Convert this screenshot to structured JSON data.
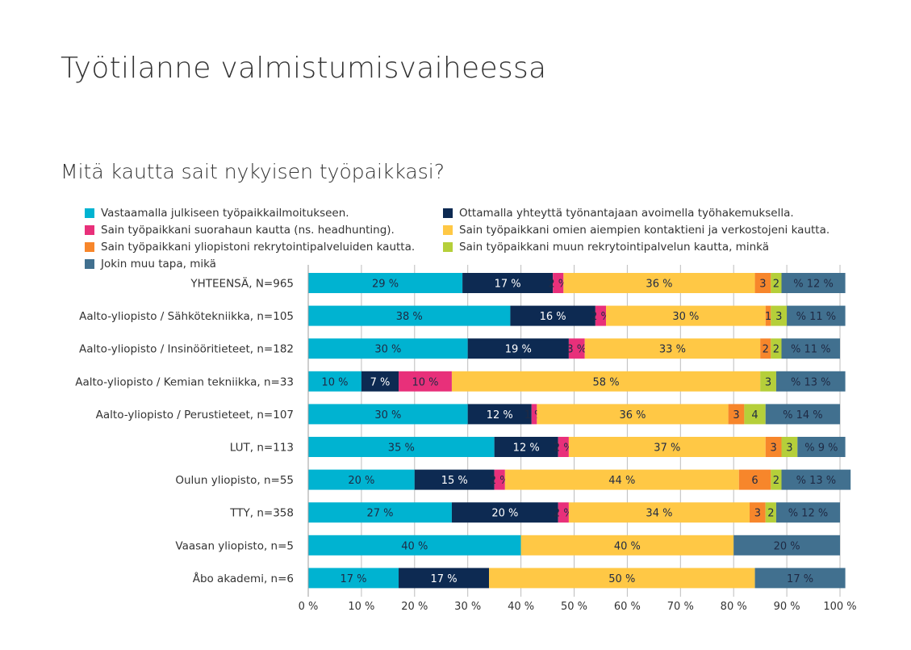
{
  "title": "Työtilanne valmistumisvaiheessa",
  "subtitle": "Mitä kautta sait nykyisen työpaikkasi?",
  "chart_data": {
    "type": "bar",
    "orientation": "horizontal",
    "stacked": true,
    "title": "Mitä kautta sait nykyisen työpaikkasi?",
    "xlim": [
      0,
      100
    ],
    "x_ticks": [
      "0 %",
      "10 %",
      "20 %",
      "30 %",
      "40 %",
      "50 %",
      "60 %",
      "70 %",
      "80 %",
      "90 %",
      "100 %"
    ],
    "grid": true,
    "legend_position": "top",
    "categories": [
      "YHTEENSÄ, N=965",
      "Aalto-yliopisto / Sähkötekniikka, n=105",
      "Aalto-yliopisto / Insinööritieteet, n=182",
      "Aalto-yliopisto / Kemian tekniikka, n=33",
      "Aalto-yliopisto / Perustieteet, n=107",
      "LUT, n=113",
      "Oulun yliopisto, n=55",
      "TTY, n=358",
      "Vaasan yliopisto, n=5",
      "Åbo akademi, n=6"
    ],
    "series": [
      {
        "name": "Vastaamalla julkiseen työpaikkailmoitukseen.",
        "color": "#00b3d1",
        "label_color": "#1f2a44",
        "values": [
          29,
          38,
          30,
          10,
          30,
          35,
          20,
          27,
          40,
          17
        ]
      },
      {
        "name": "Ottamalla yhteyttä työnantajaan avoimella työhakemuksella.",
        "color": "#0d2a52",
        "label_color": "#ffffff",
        "values": [
          17,
          16,
          19,
          7,
          12,
          12,
          15,
          20,
          0,
          17
        ]
      },
      {
        "name": "Sain työpaikkani suorahaun kautta (ns. headhunting).",
        "color": "#e8307a",
        "label_color": "#1f2a44",
        "values": [
          2,
          2,
          3,
          10,
          1,
          2,
          2,
          2,
          0,
          0
        ]
      },
      {
        "name": "Sain työpaikkani omien aiempien kontaktieni ja verkostojeni kautta.",
        "color": "#ffc845",
        "label_color": "#1f2a44",
        "values": [
          36,
          30,
          33,
          58,
          36,
          37,
          44,
          34,
          40,
          50
        ]
      },
      {
        "name": "Sain työpaikkani yliopistoni rekrytointipalveluiden kautta.",
        "color": "#f7862b",
        "label_color": "#1f2a44",
        "values": [
          3,
          1,
          2,
          0,
          3,
          3,
          6,
          3,
          0,
          0
        ]
      },
      {
        "name": "Sain työpaikkani muun rekrytointipalvelun kautta, minkä",
        "color": "#b5cf3a",
        "label_color": "#1f2a44",
        "values": [
          2,
          3,
          2,
          3,
          4,
          3,
          2,
          2,
          0,
          0
        ]
      },
      {
        "name": "Jokin muu tapa, mikä",
        "color": "#41708f",
        "label_color": "#1f2a44",
        "values": [
          12,
          11,
          11,
          13,
          14,
          9,
          13,
          12,
          20,
          17
        ]
      }
    ],
    "data_labels": [
      [
        "29 %",
        "17 %",
        "2 %",
        "36 %",
        "3",
        "2",
        "% 12 %"
      ],
      [
        "38 %",
        "16 %",
        "2 %",
        "30 %",
        "1",
        "3",
        "% 11 %"
      ],
      [
        "30 %",
        "19 %",
        "3 %",
        "33 %",
        "2",
        "2",
        "% 11 %"
      ],
      [
        "10 %",
        "7 %",
        "10 %",
        "58 %",
        "",
        "3",
        "% 13 %"
      ],
      [
        "30 %",
        "12 %",
        "1 %",
        "36 %",
        "3",
        "4",
        "% 14 %"
      ],
      [
        "35 %",
        "12 %",
        "2 %",
        "37 %",
        "3",
        "3",
        "% 9 %"
      ],
      [
        "20 %",
        "15 %",
        "2 %",
        "44 %",
        "6",
        "2",
        "% 13 %"
      ],
      [
        "27 %",
        "20 %",
        "2 %",
        "34 %",
        "3",
        "2",
        "% 12 %"
      ],
      [
        "40 %",
        "",
        "",
        "40 %",
        "",
        "",
        "20 %"
      ],
      [
        "17 %",
        "17 %",
        "",
        "50 %",
        "",
        "",
        "17 %"
      ]
    ]
  }
}
